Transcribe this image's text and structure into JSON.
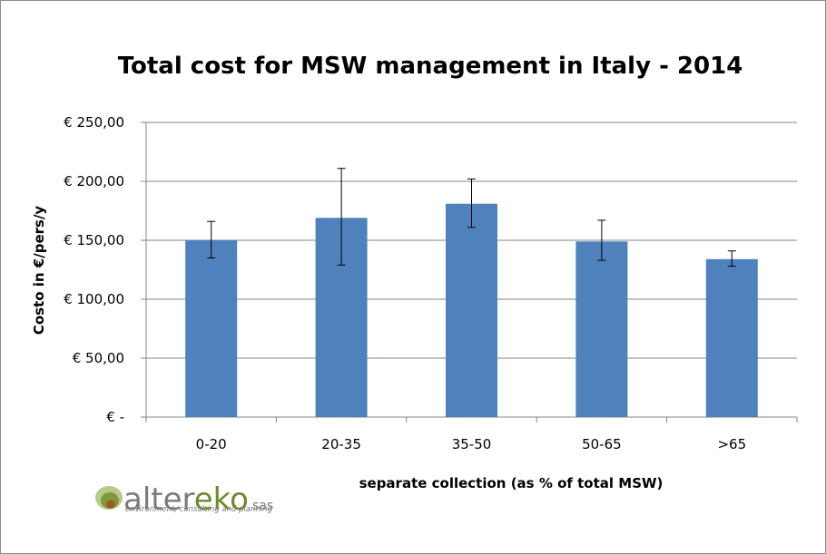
{
  "chart_data": {
    "type": "bar",
    "title": "Total cost for MSW management in Italy -  2014",
    "xlabel": "separate collection (as % of total MSW)",
    "ylabel": "Costo in €/pers/y",
    "categories": [
      "0-20",
      "20-35",
      "35-50",
      "50-65",
      ">65"
    ],
    "series": [
      {
        "values": [
          150,
          169,
          181,
          149,
          134
        ],
        "error_low": [
          135,
          129,
          161,
          133,
          128
        ],
        "error_high": [
          166,
          211,
          202,
          167,
          141
        ]
      }
    ],
    "ylim": [
      0,
      250
    ],
    "yticks": [
      0,
      50,
      100,
      150,
      200,
      250
    ],
    "ytick_labels": [
      "€ -",
      "€ 50,00",
      "€ 100,00",
      "€ 150,00",
      "€ 200,00",
      "€ 250,00"
    ],
    "grid": true,
    "legend": "none",
    "colors": {
      "bar": "#4f81bd",
      "grid": "#868686",
      "axis": "#868686",
      "error": "#000000"
    }
  },
  "logo": {
    "name_part1": "alter",
    "name_part2": "eko",
    "suffix": "sas",
    "tagline": "environment, consulting and planning",
    "colors": {
      "text": "#7a7a7a",
      "accent": "#6e8b2e",
      "outer": "#b9c98a",
      "mid": "#7c9a3a",
      "inner": "#a0562a"
    }
  }
}
